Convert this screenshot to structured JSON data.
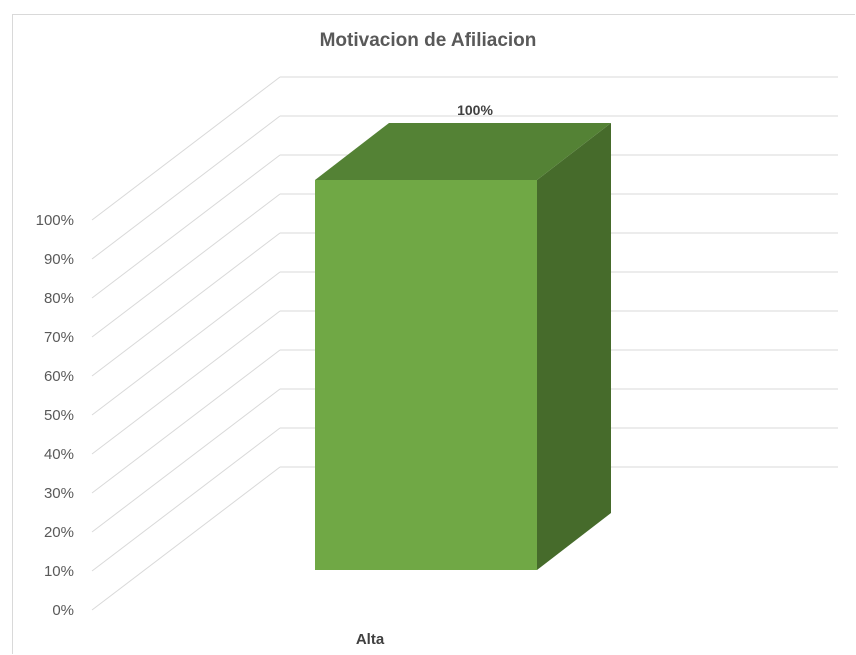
{
  "chart_data": {
    "type": "bar",
    "title": "Motivacion de Afiliacion",
    "categories": [
      "Alta"
    ],
    "series": [
      {
        "values": [
          1.0
        ],
        "data_labels": [
          "100%"
        ]
      }
    ],
    "y_ticks": [
      "0%",
      "10%",
      "20%",
      "30%",
      "40%",
      "50%",
      "60%",
      "70%",
      "80%",
      "90%",
      "100%"
    ],
    "ylim": [
      0,
      1
    ],
    "xlabel": "",
    "ylabel": "",
    "grid": true,
    "legend": "none",
    "style": "3d-column",
    "colors": {
      "front": "#70a845",
      "top": "#548235",
      "side": "#466b2b",
      "grid": "#d9d9d9",
      "text": "#595959"
    }
  }
}
